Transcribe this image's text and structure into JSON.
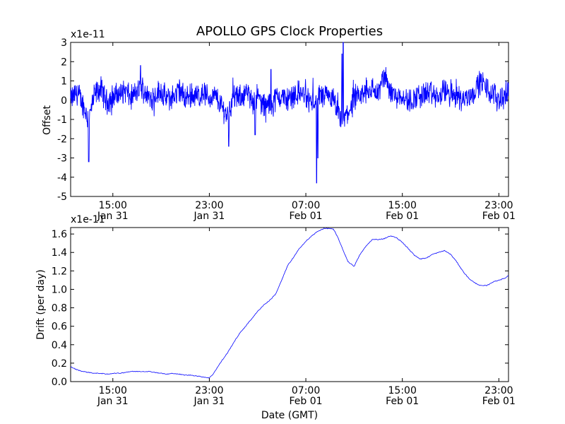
{
  "chart_data": [
    {
      "type": "line",
      "title": "APOLLO GPS Clock Properties",
      "xlabel": "",
      "ylabel": "Offset",
      "scale_label": "x1e-11",
      "ylim": [
        -5,
        3
      ],
      "yticks": [
        -5,
        -4,
        -3,
        -2,
        -1,
        0,
        1,
        2,
        3
      ],
      "xlim_hours": [
        11.5,
        47.8
      ],
      "xticks": [
        {
          "hour": 15,
          "time": "15:00",
          "date": "Jan 31"
        },
        {
          "hour": 23,
          "time": "23:00",
          "date": "Jan 31"
        },
        {
          "hour": 31,
          "time": "07:00",
          "date": "Feb 01"
        },
        {
          "hour": 39,
          "time": "15:00",
          "date": "Feb 01"
        },
        {
          "hour": 47,
          "time": "23:00",
          "date": "Feb 01"
        }
      ],
      "color": "#0000ff",
      "series": [
        {
          "name": "offset",
          "x": [
            11.5,
            12.0,
            12.5,
            13.0,
            13.5,
            14.0,
            14.5,
            15.0,
            15.5,
            16.0,
            16.5,
            17.0,
            17.5,
            18.0,
            18.5,
            19.0,
            19.5,
            20.0,
            20.5,
            21.0,
            21.5,
            22.0,
            22.5,
            23.0,
            23.5,
            24.0,
            24.5,
            25.0,
            25.5,
            26.0,
            26.5,
            27.0,
            27.5,
            28.0,
            28.5,
            29.0,
            29.5,
            30.0,
            30.5,
            31.0,
            31.5,
            32.0,
            32.5,
            33.0,
            33.5,
            34.0,
            34.5,
            35.0,
            35.5,
            36.0,
            36.5,
            37.0,
            37.5,
            38.0,
            38.5,
            39.0,
            39.5,
            40.0,
            40.5,
            41.0,
            41.5,
            42.0,
            42.5,
            43.0,
            43.5,
            44.0,
            44.5,
            45.0,
            45.5,
            46.0,
            46.5,
            47.0,
            47.5,
            47.8
          ],
          "y": [
            0.0,
            0.4,
            -0.2,
            -1.0,
            0.3,
            0.6,
            -0.1,
            0.2,
            0.3,
            0.5,
            0.1,
            0.4,
            0.6,
            0.1,
            0.3,
            0.5,
            0.0,
            0.2,
            0.5,
            0.1,
            0.3,
            0.2,
            0.4,
            0.1,
            0.2,
            -0.3,
            -0.8,
            0.2,
            0.1,
            0.4,
            0.0,
            0.2,
            -0.3,
            -0.2,
            0.1,
            0.2,
            0.0,
            0.3,
            0.4,
            0.2,
            -0.2,
            0.3,
            0.1,
            0.2,
            -0.4,
            -1.2,
            -0.6,
            -0.1,
            0.2,
            0.4,
            0.6,
            0.3,
            1.3,
            0.5,
            0.2,
            0.3,
            -0.1,
            0.1,
            0.2,
            0.4,
            0.3,
            0.1,
            0.5,
            0.2,
            0.3,
            0.0,
            0.2,
            0.5,
            1.0,
            0.6,
            0.3,
            0.1,
            0.2,
            0.5
          ]
        }
      ],
      "annotations": []
    },
    {
      "type": "line",
      "title": "",
      "xlabel": "Date (GMT)",
      "ylabel": "Drift (per day)",
      "scale_label": "x1e-11",
      "ylim": [
        0.0,
        1.67
      ],
      "yticks": [
        0.0,
        0.2,
        0.4,
        0.6,
        0.8,
        1.0,
        1.2,
        1.4,
        1.6
      ],
      "ytick_labels": [
        "0.0",
        "0.2",
        "0.4",
        "0.6",
        "0.8",
        "1.0",
        "1.2",
        "1.4",
        "1.6"
      ],
      "xlim_hours": [
        11.5,
        47.8
      ],
      "xticks": [
        {
          "hour": 15,
          "time": "15:00",
          "date": "Jan 31"
        },
        {
          "hour": 23,
          "time": "23:00",
          "date": "Jan 31"
        },
        {
          "hour": 31,
          "time": "07:00",
          "date": "Feb 01"
        },
        {
          "hour": 39,
          "time": "15:00",
          "date": "Feb 01"
        },
        {
          "hour": 47,
          "time": "23:00",
          "date": "Feb 01"
        }
      ],
      "color": "#0000ff",
      "series": [
        {
          "name": "drift",
          "x": [
            11.5,
            12.0,
            12.5,
            13.0,
            13.5,
            14.0,
            14.5,
            15.0,
            15.5,
            16.0,
            16.5,
            17.0,
            17.5,
            18.0,
            18.5,
            19.0,
            19.5,
            20.0,
            20.5,
            21.0,
            21.5,
            22.0,
            22.5,
            23.0,
            23.3,
            23.6,
            24.0,
            24.5,
            25.0,
            25.5,
            26.0,
            26.5,
            27.0,
            27.5,
            28.0,
            28.5,
            29.0,
            29.5,
            30.0,
            30.5,
            31.0,
            31.5,
            32.0,
            32.5,
            33.0,
            33.3,
            33.7,
            34.0,
            34.5,
            35.0,
            35.5,
            36.0,
            36.5,
            37.0,
            37.5,
            38.0,
            38.5,
            39.0,
            39.5,
            40.0,
            40.5,
            41.0,
            41.5,
            42.0,
            42.5,
            43.0,
            43.5,
            44.0,
            44.5,
            45.0,
            45.5,
            46.0,
            46.5,
            47.0,
            47.5,
            47.8
          ],
          "y": [
            0.16,
            0.13,
            0.11,
            0.1,
            0.09,
            0.09,
            0.08,
            0.09,
            0.09,
            0.1,
            0.11,
            0.11,
            0.11,
            0.11,
            0.1,
            0.09,
            0.08,
            0.09,
            0.08,
            0.07,
            0.07,
            0.06,
            0.05,
            0.04,
            0.08,
            0.14,
            0.22,
            0.31,
            0.42,
            0.52,
            0.6,
            0.68,
            0.76,
            0.83,
            0.88,
            0.95,
            1.1,
            1.26,
            1.35,
            1.45,
            1.52,
            1.58,
            1.63,
            1.66,
            1.66,
            1.65,
            1.55,
            1.45,
            1.3,
            1.25,
            1.38,
            1.47,
            1.54,
            1.54,
            1.55,
            1.58,
            1.56,
            1.51,
            1.44,
            1.37,
            1.33,
            1.34,
            1.38,
            1.4,
            1.42,
            1.38,
            1.3,
            1.2,
            1.12,
            1.07,
            1.04,
            1.04,
            1.08,
            1.1,
            1.12,
            1.15
          ]
        }
      ],
      "annotations": []
    }
  ]
}
